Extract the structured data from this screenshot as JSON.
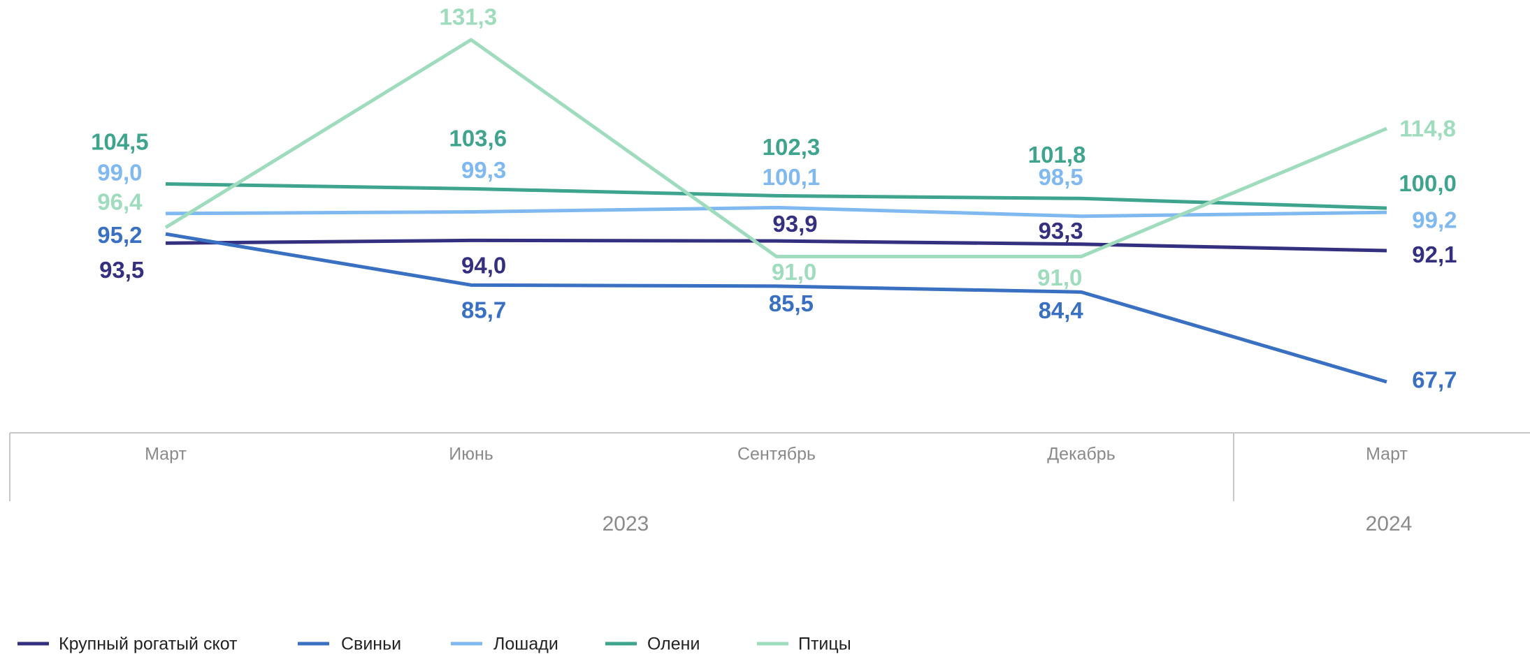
{
  "chart_data": {
    "type": "line",
    "categories": [
      "Март",
      "Июнь",
      "Сентябрь",
      "Декабрь",
      "Март"
    ],
    "groups": [
      {
        "label": "2023",
        "span": 4
      },
      {
        "label": "2024",
        "span": 1
      }
    ],
    "series": [
      {
        "name": "Крупный рогатый скот",
        "color": "#34307f",
        "values": [
          93.5,
          94.0,
          93.9,
          93.3,
          92.1
        ],
        "value_labels": [
          "93,5",
          "94,0",
          "93,9",
          "93,3",
          "92,1"
        ]
      },
      {
        "name": "Свиньи",
        "color": "#3a70c2",
        "values": [
          95.2,
          85.7,
          85.5,
          84.4,
          67.7
        ],
        "value_labels": [
          "95,2",
          "85,7",
          "85,5",
          "84,4",
          "67,7"
        ]
      },
      {
        "name": "Лошади",
        "color": "#80b9f0",
        "values": [
          99.0,
          99.3,
          100.1,
          98.5,
          99.2
        ],
        "value_labels": [
          "99,0",
          "99,3",
          "100,1",
          "98,5",
          "99,2"
        ]
      },
      {
        "name": "Олени",
        "color": "#3fa48e",
        "values": [
          104.5,
          103.6,
          102.3,
          101.8,
          100.0
        ],
        "value_labels": [
          "104,5",
          "103,6",
          "102,3",
          "101,8",
          "100,0"
        ]
      },
      {
        "name": "Птицы",
        "color": "#9fdcbd",
        "values": [
          96.4,
          131.3,
          91.0,
          91.0,
          114.8
        ],
        "value_labels": [
          "96,4",
          "131,3",
          "91,0",
          "91,0",
          "114,8"
        ]
      }
    ],
    "legend": "bottom"
  }
}
